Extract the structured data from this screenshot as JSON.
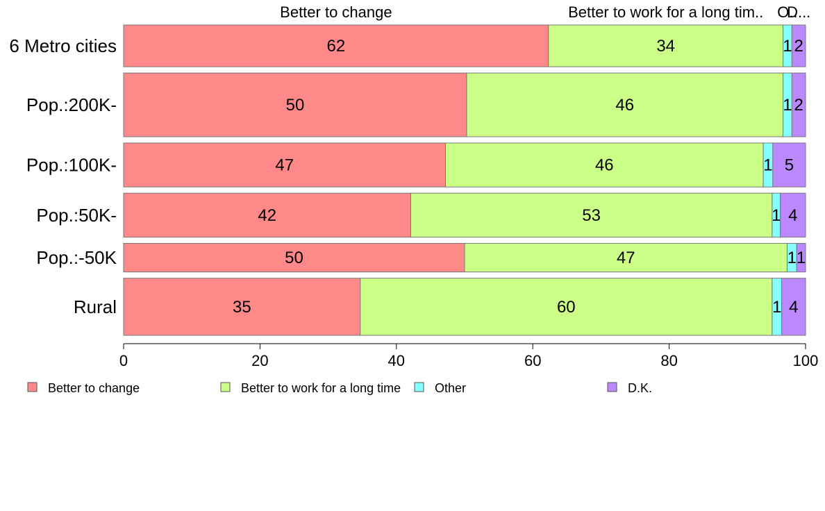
{
  "chart_data": {
    "type": "bar",
    "orientation": "horizontal",
    "stacked": true,
    "title": "",
    "xlabel": "",
    "ylabel": "",
    "xlim": [
      0,
      100
    ],
    "xticks": [
      0,
      20,
      40,
      60,
      80,
      100
    ],
    "categories": [
      "6 Metro cities",
      "Pop.:200K-",
      "Pop.:100K-",
      "Pop.:50K-",
      "Pop.:-50K",
      "Rural"
    ],
    "category_weights": [
      0.38,
      0.58,
      0.4,
      0.4,
      0.26,
      0.52
    ],
    "series": [
      {
        "name": "Better to change",
        "color": "#ff8888",
        "values": [
          62,
          50,
          47,
          42,
          50,
          35
        ]
      },
      {
        "name": "Better to work for a long time",
        "color": "#ccff88",
        "values": [
          34,
          46,
          46,
          53,
          47,
          60
        ]
      },
      {
        "name": "Other",
        "color": "#88ffff",
        "values": [
          1,
          1,
          1,
          1,
          1,
          1
        ]
      },
      {
        "name": "D.K.",
        "color": "#bb88ff",
        "values": [
          2,
          2,
          5,
          4,
          1,
          4
        ]
      }
    ],
    "bar_segments_pct": [
      [
        62.3,
        34.4,
        1.3,
        2.0
      ],
      [
        50.3,
        46.4,
        1.3,
        2.0
      ],
      [
        47.2,
        46.6,
        1.4,
        4.8
      ],
      [
        42.1,
        53.0,
        1.2,
        3.7
      ],
      [
        50.0,
        47.3,
        1.4,
        1.3
      ],
      [
        34.7,
        60.4,
        1.4,
        3.5
      ]
    ],
    "top_labels": [
      "Better to change",
      "Better to work for a long tim..",
      "O..",
      "D..."
    ],
    "legend": {
      "position": "bottom",
      "entries": [
        "Better to change",
        "Better to work for a long time",
        "Other",
        "D.K."
      ]
    },
    "grid": false
  }
}
